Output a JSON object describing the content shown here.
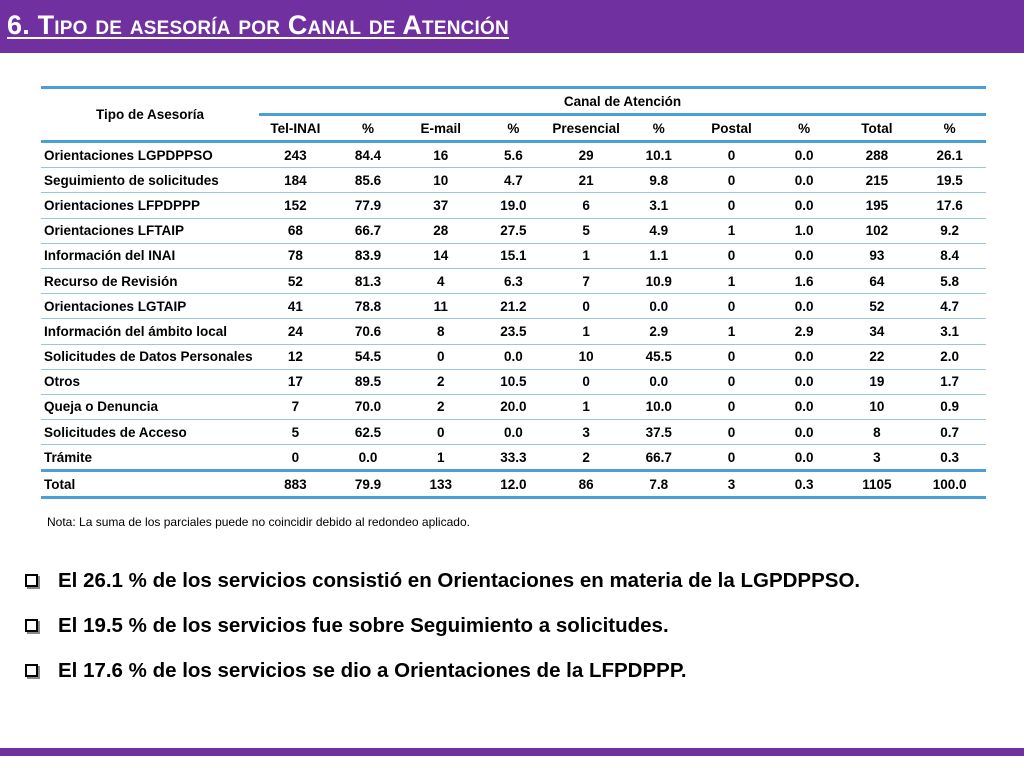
{
  "title": "6. Tipo de asesoría por Canal de Atención",
  "table": {
    "row_header": "Tipo de Asesoría",
    "group_header": "Canal de Atención",
    "columns": [
      "Tel-INAI",
      "%",
      "E-mail",
      "%",
      "Presencial",
      "%",
      "Postal",
      "%",
      "Total",
      "%"
    ],
    "rows": [
      [
        "Orientaciones LGPDPPSO",
        "243",
        "84.4",
        "16",
        "5.6",
        "29",
        "10.1",
        "0",
        "0.0",
        "288",
        "26.1"
      ],
      [
        "Seguimiento de solicitudes",
        "184",
        "85.6",
        "10",
        "4.7",
        "21",
        "9.8",
        "0",
        "0.0",
        "215",
        "19.5"
      ],
      [
        "Orientaciones LFPDPPP",
        "152",
        "77.9",
        "37",
        "19.0",
        "6",
        "3.1",
        "0",
        "0.0",
        "195",
        "17.6"
      ],
      [
        "Orientaciones LFTAIP",
        "68",
        "66.7",
        "28",
        "27.5",
        "5",
        "4.9",
        "1",
        "1.0",
        "102",
        "9.2"
      ],
      [
        "Información del INAI",
        "78",
        "83.9",
        "14",
        "15.1",
        "1",
        "1.1",
        "0",
        "0.0",
        "93",
        "8.4"
      ],
      [
        "Recurso de Revisión",
        "52",
        "81.3",
        "4",
        "6.3",
        "7",
        "10.9",
        "1",
        "1.6",
        "64",
        "5.8"
      ],
      [
        "Orientaciones LGTAIP",
        "41",
        "78.8",
        "11",
        "21.2",
        "0",
        "0.0",
        "0",
        "0.0",
        "52",
        "4.7"
      ],
      [
        "Información del ámbito local",
        "24",
        "70.6",
        "8",
        "23.5",
        "1",
        "2.9",
        "1",
        "2.9",
        "34",
        "3.1"
      ],
      [
        "Solicitudes de Datos Personales",
        "12",
        "54.5",
        "0",
        "0.0",
        "10",
        "45.5",
        "0",
        "0.0",
        "22",
        "2.0"
      ],
      [
        "Otros",
        "17",
        "89.5",
        "2",
        "10.5",
        "0",
        "0.0",
        "0",
        "0.0",
        "19",
        "1.7"
      ],
      [
        "Queja o Denuncia",
        "7",
        "70.0",
        "2",
        "20.0",
        "1",
        "10.0",
        "0",
        "0.0",
        "10",
        "0.9"
      ],
      [
        "Solicitudes de Acceso",
        "5",
        "62.5",
        "0",
        "0.0",
        "3",
        "37.5",
        "0",
        "0.0",
        "8",
        "0.7"
      ],
      [
        "Trámite",
        "0",
        "0.0",
        "1",
        "33.3",
        "2",
        "66.7",
        "0",
        "0.0",
        "3",
        "0.3"
      ]
    ],
    "total": [
      "Total",
      "883",
      "79.9",
      "133",
      "12.0",
      "86",
      "7.8",
      "3",
      "0.3",
      "1105",
      "100.0"
    ]
  },
  "note": "Nota: La suma de los parciales puede no coincidir debido al redondeo aplicado.",
  "bullets": [
    "El 26.1 % de los servicios consistió en Orientaciones en materia de la LGPDPPSO.",
    "El 19.5 % de los servicios fue sobre Seguimiento a solicitudes.",
    "El 17.6 % de los servicios se dio a Orientaciones de la LFPDPPP."
  ],
  "colors": {
    "accent": "#7030a0",
    "rule": "#4a9fd8"
  }
}
